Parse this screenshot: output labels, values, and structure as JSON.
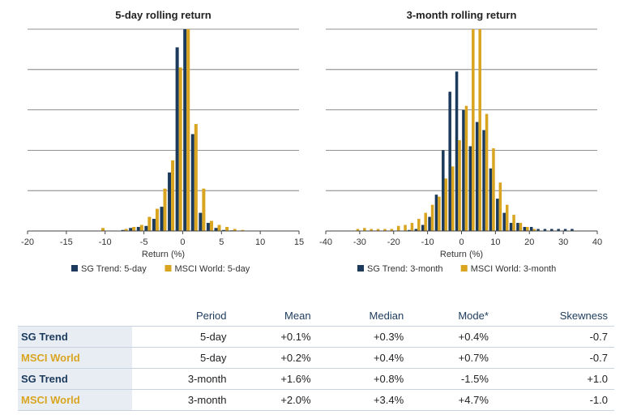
{
  "colors": {
    "sg": "#1b3a5c",
    "msci": "#d9a520"
  },
  "chart_data": [
    {
      "type": "bar",
      "title": "5-day rolling return",
      "xlabel": "Return (%)",
      "xlim": [
        -20,
        15
      ],
      "xticks": [
        -20,
        -15,
        -10,
        -5,
        0,
        5,
        10,
        15
      ],
      "ylim": [
        0,
        100
      ],
      "grid": true,
      "legend": "bottom",
      "series": [
        {
          "name": "SG Trend: 5-day",
          "color": "#1b3a5c",
          "x": [
            -7.5,
            -6.5,
            -5.5,
            -4.5,
            -3.5,
            -2.5,
            -1.5,
            -0.5,
            0.5,
            1.5,
            2.5,
            3.5,
            4.5,
            5.5,
            6.5,
            7.5
          ],
          "values": [
            0.5,
            1.5,
            2,
            2.5,
            6,
            12,
            29,
            91,
            100,
            48,
            9,
            4,
            1.5,
            0.5,
            0.3,
            0.2
          ]
        },
        {
          "name": "MSCI World: 5-day",
          "color": "#d9a520",
          "x": [
            -10.5,
            -7.5,
            -6.5,
            -5.5,
            -4.5,
            -3.5,
            -2.5,
            -1.5,
            -0.5,
            0.5,
            1.5,
            2.5,
            3.5,
            4.5,
            5.5,
            6.5,
            7.5
          ],
          "values": [
            1.5,
            1,
            2,
            3,
            7,
            11,
            21,
            35,
            81,
            100,
            53,
            21,
            5,
            3,
            2,
            1,
            0.5
          ]
        }
      ]
    },
    {
      "type": "bar",
      "title": "3-month rolling return",
      "xlabel": "Return (%)",
      "xlim": [
        -40,
        40
      ],
      "xticks": [
        -40,
        -30,
        -20,
        -10,
        0,
        10,
        20,
        30,
        40
      ],
      "ylim": [
        0,
        100
      ],
      "grid": true,
      "legend": "bottom",
      "series": [
        {
          "name": "SG Trend: 3-month",
          "color": "#1b3a5c",
          "x": [
            -17,
            -15,
            -13,
            -11,
            -9,
            -7,
            -5,
            -3,
            -1,
            1,
            3,
            5,
            7,
            9,
            11,
            13,
            15,
            17,
            19,
            21,
            23,
            25,
            27,
            29,
            31,
            33
          ],
          "values": [
            0,
            0.5,
            1,
            3,
            7,
            18,
            40,
            69,
            79,
            60,
            42,
            54,
            50,
            31,
            16,
            9,
            4,
            4,
            2,
            2,
            1,
            1,
            1,
            1,
            1,
            1
          ]
        },
        {
          "name": "MSCI World: 3-month",
          "color": "#d9a520",
          "x": [
            -31,
            -29,
            -27,
            -25,
            -23,
            -21,
            -19,
            -17,
            -15,
            -13,
            -11,
            -9,
            -7,
            -5,
            -3,
            -1,
            1,
            3,
            5,
            7,
            9,
            11,
            13,
            15,
            17,
            19,
            21
          ],
          "values": [
            1,
            1.5,
            1,
            1,
            1,
            1,
            2.5,
            3,
            4,
            6,
            9,
            13,
            17,
            26,
            32,
            45,
            62,
            100,
            100,
            58,
            41,
            24,
            13,
            8,
            4,
            2,
            1
          ]
        }
      ]
    }
  ],
  "table": {
    "headers": [
      "",
      "Period",
      "Mean",
      "Median",
      "Mode*",
      "Skewness"
    ],
    "rows": [
      {
        "name": "SG Trend",
        "period": "5-day",
        "mean": "+0.1%",
        "median": "+0.3%",
        "mode": "+0.4%",
        "skewness": "-0.7"
      },
      {
        "name": "MSCI World",
        "period": "5-day",
        "mean": "+0.2%",
        "median": "+0.4%",
        "mode": "+0.7%",
        "skewness": "-0.7"
      },
      {
        "name": "SG Trend",
        "period": "3-month",
        "mean": "+1.6%",
        "median": "+0.8%",
        "mode": "-1.5%",
        "skewness": "+1.0"
      },
      {
        "name": "MSCI World",
        "period": "3-month",
        "mean": "+2.0%",
        "median": "+3.4%",
        "mode": "+4.7%",
        "skewness": "-1.0"
      }
    ]
  }
}
